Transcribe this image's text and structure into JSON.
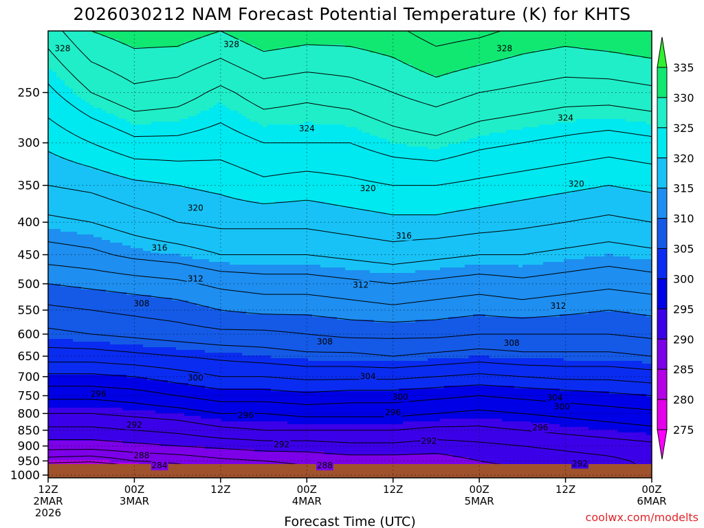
{
  "title": "2026030212 NAM Forecast Potential Temperature (K) for KHTS",
  "credit": "coolwx.com/modelts",
  "chart_data": {
    "type": "heatmap",
    "title": "2026030212 NAM Forecast Potential Temperature (K) for KHTS",
    "xlabel": "Forecast Time (UTC)",
    "ylabel": "",
    "x_unit": "forecast hour",
    "xlim": [
      0,
      84
    ],
    "x_ticks": [
      {
        "hour": 0,
        "lines": [
          "12Z",
          "2MAR",
          "2026"
        ]
      },
      {
        "hour": 12,
        "lines": [
          "00Z",
          "3MAR"
        ]
      },
      {
        "hour": 24,
        "lines": [
          "12Z"
        ]
      },
      {
        "hour": 36,
        "lines": [
          "00Z",
          "4MAR"
        ]
      },
      {
        "hour": 48,
        "lines": [
          "12Z"
        ]
      },
      {
        "hour": 60,
        "lines": [
          "00Z",
          "5MAR"
        ]
      },
      {
        "hour": 72,
        "lines": [
          "12Z"
        ]
      },
      {
        "hour": 84,
        "lines": [
          "00Z",
          "6MAR"
        ]
      }
    ],
    "y_unit": "hPa",
    "y_ticks": [
      250,
      300,
      350,
      400,
      450,
      500,
      550,
      600,
      650,
      700,
      750,
      800,
      850,
      900,
      950,
      1000
    ],
    "ylim": [
      1010,
      200
    ],
    "ground_level_hpa": 1000,
    "grid": "dotted",
    "colorbar": {
      "placement": "right",
      "ticks": [
        335,
        330,
        325,
        320,
        315,
        310,
        305,
        300,
        295,
        290,
        285,
        280,
        275
      ],
      "bands": [
        {
          "from": 270,
          "to": 275,
          "color": "#ff00ff"
        },
        {
          "from": 275,
          "to": 280,
          "color": "#e400ea"
        },
        {
          "from": 280,
          "to": 285,
          "color": "#b400e6"
        },
        {
          "from": 285,
          "to": 290,
          "color": "#7c00e8"
        },
        {
          "from": 290,
          "to": 295,
          "color": "#3c00e8"
        },
        {
          "from": 295,
          "to": 300,
          "color": "#0000e6"
        },
        {
          "from": 300,
          "to": 305,
          "color": "#0a2cf0"
        },
        {
          "from": 305,
          "to": 310,
          "color": "#145ae6"
        },
        {
          "from": 310,
          "to": 315,
          "color": "#1e8ef0"
        },
        {
          "from": 315,
          "to": 320,
          "color": "#18c2f6"
        },
        {
          "from": 320,
          "to": 325,
          "color": "#00e8f0"
        },
        {
          "from": 325,
          "to": 330,
          "color": "#20eec8"
        },
        {
          "from": 330,
          "to": 335,
          "color": "#10e872"
        },
        {
          "from": 335,
          "to": 340,
          "color": "#30f030"
        },
        {
          "from": 340,
          "to": 345,
          "color": "#aaee00"
        }
      ]
    },
    "profile_hpa": [
      1000,
      950,
      900,
      850,
      800,
      750,
      700,
      650,
      600,
      550,
      500,
      450,
      400,
      350,
      300,
      250,
      200
    ],
    "profiles": [
      {
        "hour": 0,
        "theta": [
          278.0,
          285.0,
          289.0,
          291.5,
          294.0,
          296.5,
          299.5,
          303.0,
          305.5,
          307.5,
          310.0,
          313.0,
          315.5,
          318.0,
          320.5,
          323.5,
          327.0
        ]
      },
      {
        "hour": 6,
        "theta": [
          277.0,
          284.5,
          289.0,
          291.5,
          294.0,
          296.5,
          299.5,
          303.0,
          306.0,
          308.0,
          310.5,
          313.5,
          316.0,
          318.5,
          322.0,
          326.0,
          330.0
        ]
      },
      {
        "hour": 12,
        "theta": [
          281.0,
          286.0,
          289.5,
          292.0,
          294.5,
          297.0,
          300.0,
          303.5,
          306.5,
          308.5,
          311.0,
          314.5,
          317.0,
          319.5,
          323.5,
          327.5,
          331.0
        ]
      },
      {
        "hour": 18,
        "theta": [
          284.0,
          286.5,
          290.0,
          292.5,
          295.0,
          298.0,
          301.0,
          304.0,
          307.0,
          309.0,
          311.5,
          315.0,
          318.0,
          320.0,
          323.5,
          327.0,
          331.0
        ]
      },
      {
        "hour": 24,
        "theta": [
          286.0,
          287.5,
          290.5,
          293.5,
          296.0,
          299.0,
          302.0,
          304.5,
          307.5,
          310.0,
          312.5,
          316.0,
          318.5,
          320.5,
          323.0,
          325.5,
          330.0
        ]
      },
      {
        "hour": 30,
        "theta": [
          286.0,
          288.0,
          291.0,
          294.0,
          296.0,
          299.0,
          302.0,
          305.0,
          307.5,
          310.5,
          313.0,
          316.0,
          318.5,
          321.5,
          324.0,
          327.0,
          331.5
        ]
      },
      {
        "hour": 36,
        "theta": [
          287.0,
          288.5,
          291.0,
          294.0,
          296.5,
          299.5,
          302.5,
          305.5,
          308.0,
          310.5,
          313.0,
          316.0,
          318.5,
          321.0,
          324.0,
          326.5,
          331.0
        ]
      },
      {
        "hour": 42,
        "theta": [
          287.5,
          289.0,
          291.5,
          294.0,
          296.5,
          299.0,
          302.5,
          305.5,
          308.5,
          311.0,
          313.5,
          316.5,
          319.0,
          321.5,
          324.0,
          327.0,
          331.0
        ]
      },
      {
        "hour": 48,
        "theta": [
          288.0,
          289.0,
          291.5,
          294.0,
          296.5,
          299.0,
          302.5,
          306.0,
          308.5,
          311.5,
          314.0,
          317.0,
          319.5,
          322.0,
          325.0,
          328.0,
          331.5
        ]
      },
      {
        "hour": 54,
        "theta": [
          288.0,
          289.0,
          291.0,
          293.5,
          296.0,
          298.5,
          302.0,
          305.5,
          308.5,
          311.0,
          313.5,
          316.5,
          319.5,
          322.0,
          325.5,
          329.0,
          333.0
        ]
      },
      {
        "hour": 60,
        "theta": [
          289.0,
          290.0,
          291.5,
          293.5,
          295.5,
          298.0,
          301.5,
          305.0,
          308.0,
          310.5,
          313.0,
          316.0,
          319.0,
          321.5,
          324.5,
          328.0,
          332.5
        ]
      },
      {
        "hour": 66,
        "theta": [
          289.5,
          290.5,
          292.0,
          294.0,
          296.0,
          298.5,
          302.0,
          305.5,
          308.0,
          311.0,
          313.5,
          316.0,
          318.5,
          321.0,
          324.0,
          327.5,
          331.5
        ]
      },
      {
        "hour": 72,
        "theta": [
          290.0,
          291.0,
          292.5,
          294.5,
          296.5,
          299.0,
          302.5,
          305.5,
          308.0,
          310.5,
          313.0,
          315.5,
          318.0,
          320.5,
          323.5,
          327.0,
          331.0
        ]
      },
      {
        "hour": 78,
        "theta": [
          291.0,
          291.5,
          293.0,
          295.0,
          297.0,
          299.5,
          302.5,
          305.5,
          308.0,
          310.0,
          312.5,
          315.0,
          317.5,
          320.0,
          323.0,
          327.0,
          331.5
        ]
      },
      {
        "hour": 84,
        "theta": [
          292.0,
          292.5,
          293.5,
          295.5,
          297.5,
          300.0,
          303.0,
          306.0,
          308.5,
          310.5,
          313.0,
          315.5,
          318.0,
          320.5,
          323.5,
          327.5,
          332.0
        ]
      }
    ],
    "contour_interval": 2,
    "contour_labels": [
      {
        "value": 328,
        "hour": 2,
        "hpa": 213
      },
      {
        "value": 328,
        "hour": 25.5,
        "hpa": 210
      },
      {
        "value": 328,
        "hour": 63.5,
        "hpa": 213
      },
      {
        "value": 324,
        "hour": 72,
        "hpa": 274
      },
      {
        "value": 324,
        "hour": 36,
        "hpa": 285
      },
      {
        "value": 320,
        "hour": 44.5,
        "hpa": 354
      },
      {
        "value": 320,
        "hour": 73.5,
        "hpa": 348
      },
      {
        "value": 320,
        "hour": 20.5,
        "hpa": 380
      },
      {
        "value": 316,
        "hour": 15.5,
        "hpa": 439
      },
      {
        "value": 316,
        "hour": 49.5,
        "hpa": 420
      },
      {
        "value": 312,
        "hour": 20.5,
        "hpa": 491
      },
      {
        "value": 312,
        "hour": 43.5,
        "hpa": 502
      },
      {
        "value": 312,
        "hour": 71,
        "hpa": 542
      },
      {
        "value": 308,
        "hour": 13,
        "hpa": 537
      },
      {
        "value": 308,
        "hour": 38.5,
        "hpa": 617
      },
      {
        "value": 308,
        "hour": 64.5,
        "hpa": 620
      },
      {
        "value": 304,
        "hour": 44.5,
        "hpa": 699
      },
      {
        "value": 304,
        "hour": 70.5,
        "hpa": 756
      },
      {
        "value": 300,
        "hour": 20.5,
        "hpa": 703
      },
      {
        "value": 300,
        "hour": 49,
        "hpa": 754
      },
      {
        "value": 300,
        "hour": 71.5,
        "hpa": 780
      },
      {
        "value": 296,
        "hour": 7,
        "hpa": 745
      },
      {
        "value": 296,
        "hour": 27.5,
        "hpa": 805
      },
      {
        "value": 296,
        "hour": 48,
        "hpa": 797
      },
      {
        "value": 296,
        "hour": 68.5,
        "hpa": 842
      },
      {
        "value": 292,
        "hour": 12,
        "hpa": 834
      },
      {
        "value": 292,
        "hour": 32.5,
        "hpa": 895
      },
      {
        "value": 292,
        "hour": 53,
        "hpa": 884
      },
      {
        "value": 292,
        "hour": 74,
        "hpa": 960
      },
      {
        "value": 288,
        "hour": 13,
        "hpa": 932
      },
      {
        "value": 288,
        "hour": 38.5,
        "hpa": 966
      },
      {
        "value": 284,
        "hour": 15.5,
        "hpa": 966
      }
    ]
  }
}
